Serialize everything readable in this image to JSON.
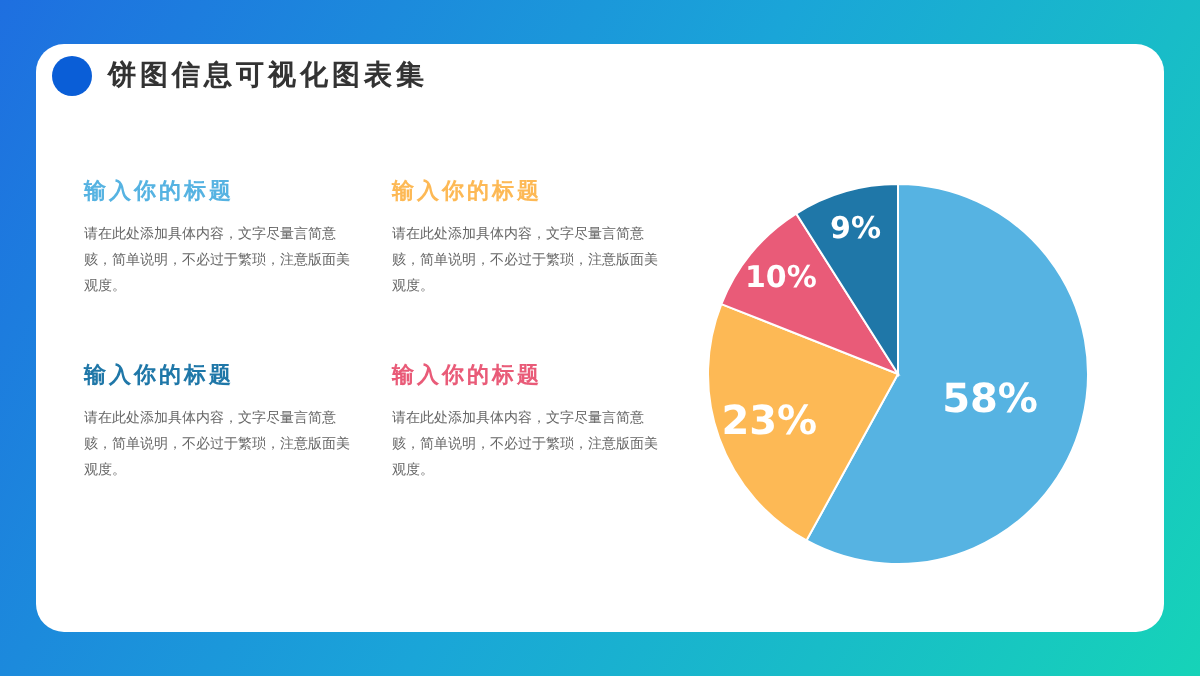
{
  "chart_data": {
    "type": "pie",
    "title": "饼图信息可视化图表集",
    "categories": [
      null,
      null,
      null,
      null
    ],
    "values": [
      58,
      23,
      10,
      9
    ],
    "colors": [
      "#56b3e2",
      "#fdb955",
      "#e95b78",
      "#1f77a8"
    ],
    "value_labels": [
      "58%",
      "23%",
      "10%",
      "9%"
    ],
    "legend": false,
    "annotations": [
      "输入你的标题",
      "请在此处添加具体内容，文字尽量言简意赅，简单说明，不必过于繁琐，注意版面美观度。",
      "输入你的标题",
      "请在此处添加具体内容，文字尽量言简意赅，简单说明，不必过于繁琐，注意版面美观度。",
      "输入你的标题",
      "请在此处添加具体内容，文字尽量言简意赅，简单说明，不必过于繁琐，注意版面美观度。",
      "输入你的标题",
      "请在此处添加具体内容，文字尽量言简意赅，简单说明，不必过于繁琐，注意版面美观度。"
    ]
  }
}
